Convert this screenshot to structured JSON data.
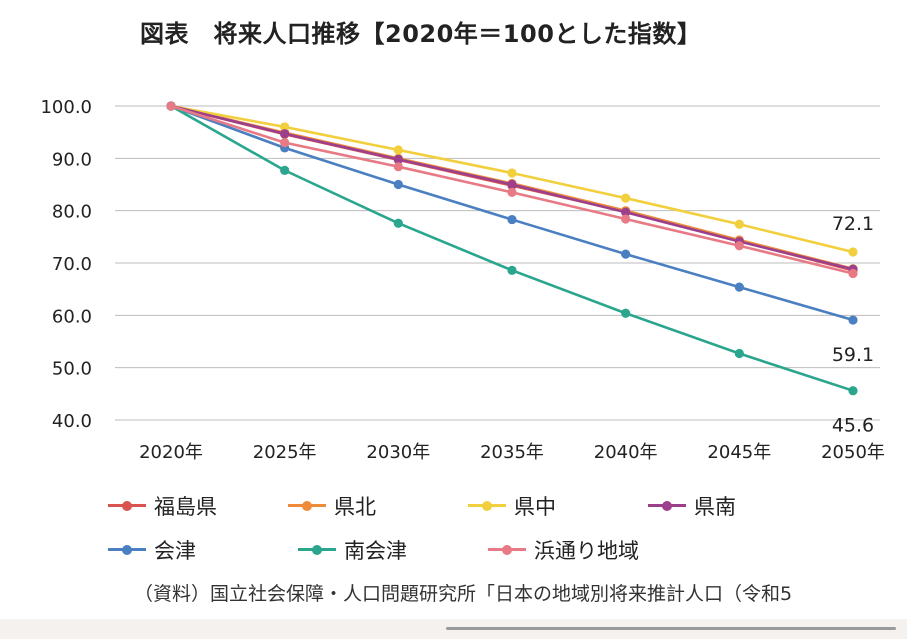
{
  "chart_data": {
    "type": "line",
    "title": "図表　将来人口推移【2020年＝100とした指数】",
    "categories": [
      "2020年",
      "2025年",
      "2030年",
      "2035年",
      "2040年",
      "2045年",
      "2050年"
    ],
    "ylim": [
      40,
      100
    ],
    "yticks": [
      "100.0",
      "90.0",
      "80.0",
      "70.0",
      "60.0",
      "50.0",
      "40.0"
    ],
    "grid": true,
    "legend_position": "bottom",
    "series": [
      {
        "name": "福島県",
        "color": "#d9534f",
        "values": [
          100,
          94.6,
          89.7,
          84.8,
          79.8,
          74.2,
          68.6
        ]
      },
      {
        "name": "県北",
        "color": "#ee8c3a",
        "values": [
          100,
          94.9,
          90.0,
          85.2,
          80.0,
          74.4,
          68.9
        ]
      },
      {
        "name": "県中",
        "color": "#f2cf3c",
        "values": [
          100,
          96.0,
          91.6,
          87.2,
          82.4,
          77.4,
          72.1
        ]
      },
      {
        "name": "県南",
        "color": "#9c3f8c",
        "values": [
          100,
          94.7,
          89.8,
          85.0,
          79.7,
          74.1,
          68.8
        ]
      },
      {
        "name": "会津",
        "color": "#4a7fc1",
        "values": [
          100,
          92.0,
          85.0,
          78.3,
          71.7,
          65.4,
          59.1
        ]
      },
      {
        "name": "南会津",
        "color": "#2aa58e",
        "values": [
          100,
          87.7,
          77.6,
          68.6,
          60.4,
          52.7,
          45.6
        ]
      },
      {
        "name": "浜通り地域",
        "color": "#e87a86",
        "values": [
          100,
          93.0,
          88.4,
          83.5,
          78.4,
          73.3,
          68.0
        ]
      }
    ],
    "data_labels": [
      {
        "series": "県中",
        "text": "72.1"
      },
      {
        "series": "会津",
        "text": "59.1"
      },
      {
        "series": "南会津",
        "text": "45.6"
      }
    ]
  },
  "source_note": "（資料）国立社会保障・人口問題研究所「日本の地域別将来推計人口（令和5"
}
